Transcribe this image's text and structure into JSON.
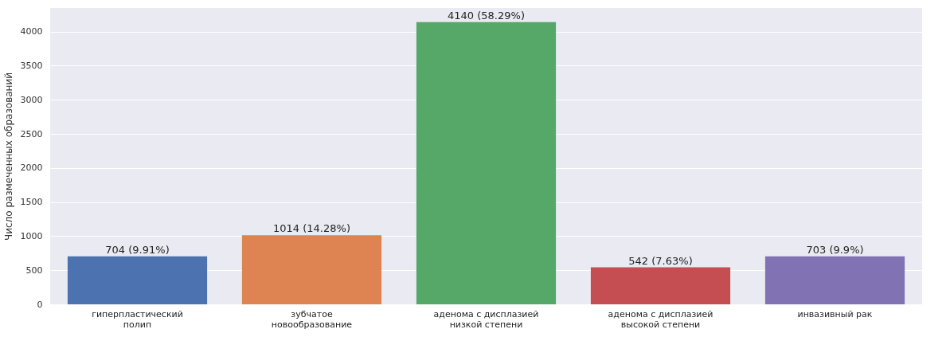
{
  "chart_data": {
    "type": "bar",
    "ylabel": "Число размеченных образований",
    "categories": [
      "гиперпластический\nполип",
      "зубчатое\nновообразование",
      "аденома с дисплазией\nнизкой степени",
      "аденома с дисплазией\nвысокой степени",
      "инвазивный рак"
    ],
    "values": [
      704,
      1014,
      4140,
      542,
      703
    ],
    "colors": [
      "#4c72b0",
      "#dd8452",
      "#55a868",
      "#c44e52",
      "#8172b3"
    ],
    "value_labels": [
      "704 (9.91%)",
      "1014 (14.28%)",
      "4140 (58.29%)",
      "542 (7.63%)",
      "703 (9.9%)"
    ],
    "ylim": [
      0,
      4347
    ],
    "yticks": [
      0,
      500,
      1000,
      1500,
      2000,
      2500,
      3000,
      3500,
      4000
    ],
    "grid": "y"
  }
}
